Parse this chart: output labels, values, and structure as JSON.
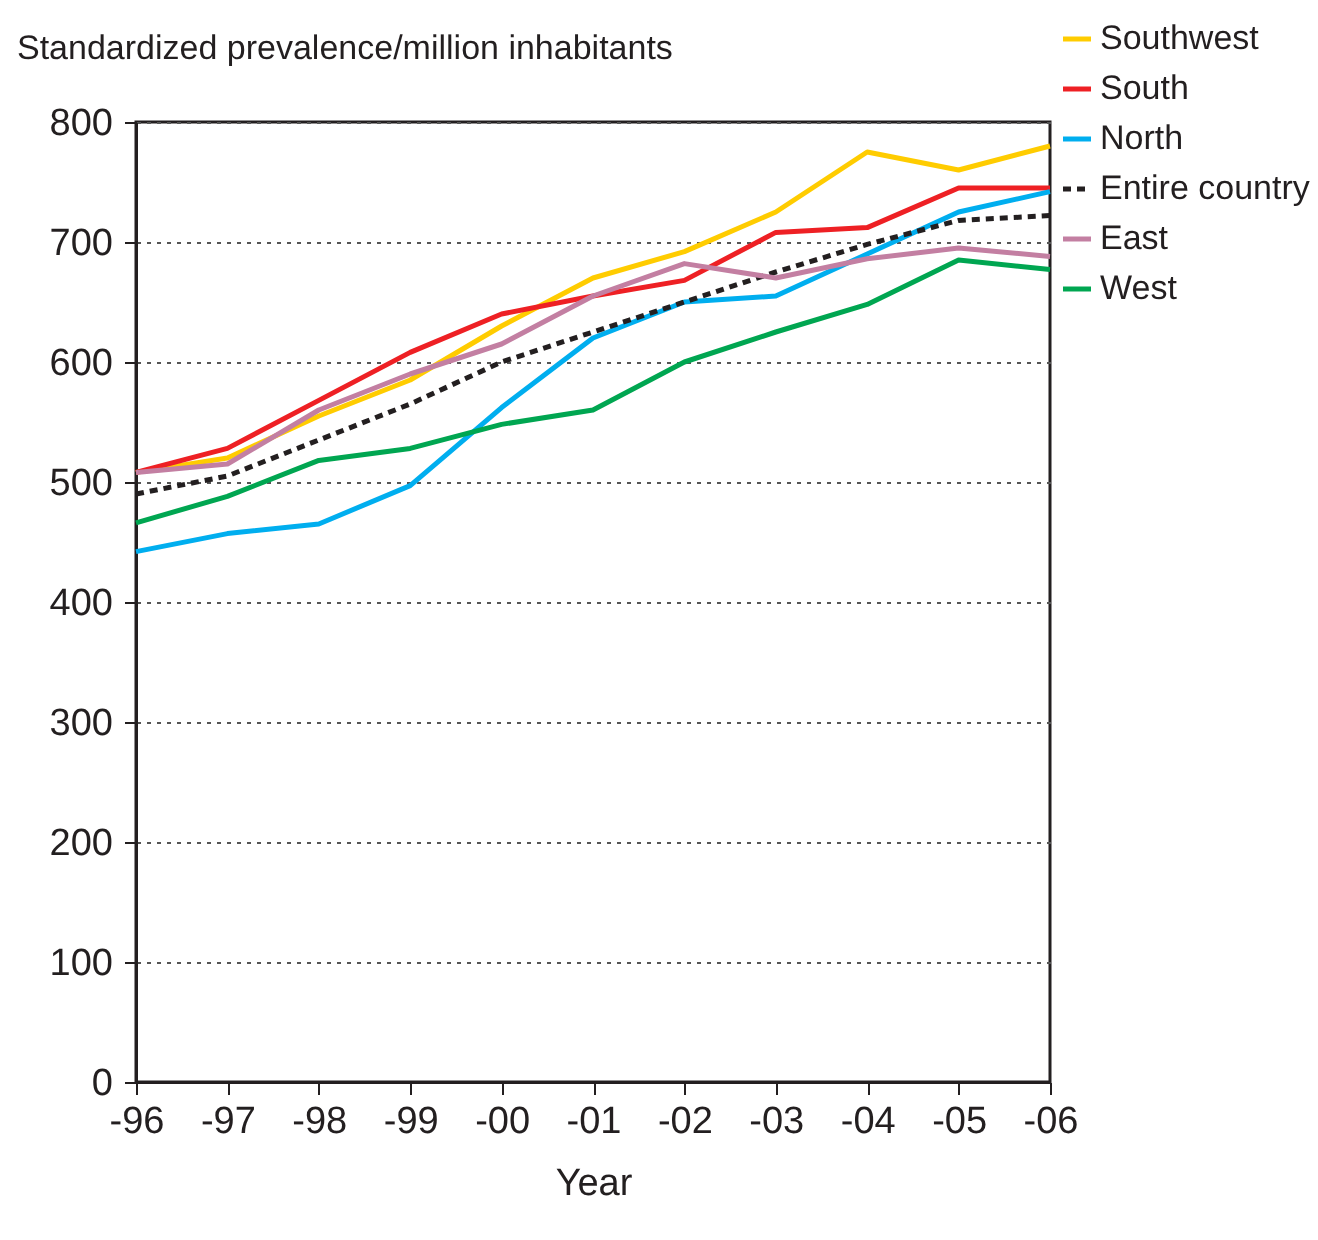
{
  "chart_data": {
    "type": "line",
    "ylabel": "Standardized prevalence/million inhabitants",
    "xlabel": "Year",
    "categories": [
      "-96",
      "-97",
      "-98",
      "-99",
      "-00",
      "-01",
      "-02",
      "-03",
      "-04",
      "-05",
      "-06"
    ],
    "ylim": [
      0,
      800
    ],
    "yticks": [
      0,
      100,
      200,
      300,
      400,
      500,
      600,
      700,
      800
    ],
    "grid": "y",
    "legend": "right",
    "series": [
      {
        "name": "Southwest",
        "color": "#ffcc00",
        "line_style": "solid",
        "values": [
          508,
          520,
          555,
          585,
          630,
          670,
          692,
          725,
          775,
          760,
          780
        ]
      },
      {
        "name": "South",
        "color": "#ee2024",
        "line_style": "solid",
        "values": [
          508,
          528,
          568,
          608,
          640,
          655,
          668,
          708,
          712,
          745,
          745
        ]
      },
      {
        "name": "North",
        "color": "#00aeef",
        "line_style": "solid",
        "values": [
          442,
          457,
          465,
          497,
          562,
          620,
          650,
          655,
          690,
          725,
          742
        ]
      },
      {
        "name": "Entire country",
        "color": "#231f20",
        "line_style": "dashed",
        "values": [
          490,
          505,
          535,
          565,
          600,
          625,
          650,
          675,
          698,
          718,
          722
        ]
      },
      {
        "name": "East",
        "color": "#c37fa2",
        "line_style": "solid",
        "values": [
          508,
          515,
          560,
          590,
          615,
          655,
          682,
          670,
          686,
          695,
          688
        ]
      },
      {
        "name": "West",
        "color": "#00a651",
        "line_style": "solid",
        "values": [
          466,
          488,
          518,
          528,
          548,
          560,
          600,
          625,
          648,
          685,
          677
        ]
      }
    ]
  }
}
